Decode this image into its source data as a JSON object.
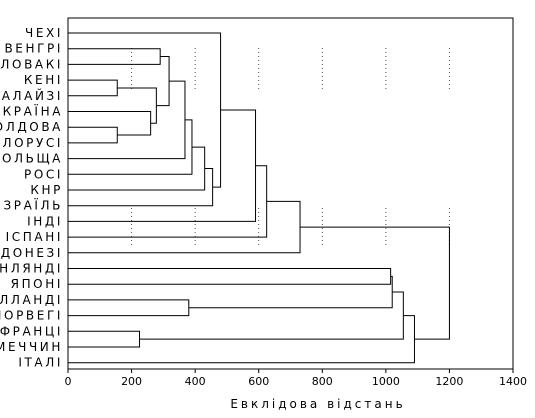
{
  "chart_data": {
    "type": "dendrogram",
    "xlabel": "Евклідова відстань",
    "xlim": [
      0,
      1400
    ],
    "x_ticks": [
      0,
      200,
      400,
      600,
      800,
      1000,
      1200,
      1400
    ],
    "leaves": [
      "ЧЕХІ",
      "ВЕНГРІ",
      "СЛОВАКІ",
      "КЕНІ",
      "МАЛАЙЗІ",
      "УКРАЇНА",
      "МОЛДОВА",
      "БІЛОРУСІ",
      "ПОЛЬЩА",
      "РОСІ",
      "КНР",
      "ІЗРАЇЛЬ",
      "ІНДІ",
      "ІСПАНІ",
      "ІНДОНЕЗІ",
      "ФІНЛЯНДІ",
      "ЯПОНІ",
      "ГОЛЛАНДІ",
      "НОРВЕГІ",
      "ФРАНЦІ",
      "НІМЕЧЧИН",
      "ІТАЛІ"
    ],
    "merges": [
      {
        "a": "КЕНІ",
        "b": "МАЛАЙЗІ",
        "height": 155
      },
      {
        "a": "МОЛДОВА",
        "b": "БІЛОРУСІ",
        "height": 155
      },
      {
        "a": "НІМЕЧЧИН",
        "b": "ФРАНЦІ",
        "height": 225
      },
      {
        "a": "УКРАЇНА",
        "b": "C2",
        "height": 260
      },
      {
        "a": "C1",
        "b": "C4",
        "height": 278
      },
      {
        "a": "ВЕНГРІ",
        "b": "СЛОВАКІ",
        "height": 290
      },
      {
        "a": "C6",
        "b": "C5",
        "height": 318
      },
      {
        "a": "ПОЛЬЩА",
        "b": "C7",
        "height": 368
      },
      {
        "a": "ГОЛЛАНДІ",
        "b": "НОРВЕГІ",
        "height": 380
      },
      {
        "a": "C8",
        "b": "РОСІ",
        "height": 390
      },
      {
        "a": "КНР",
        "b": "C10",
        "height": 430
      },
      {
        "a": "ІЗРАЇЛЬ",
        "b": "C11",
        "height": 455
      },
      {
        "a": "ЧЕХІ",
        "b": "C12",
        "height": 480
      },
      {
        "a": "C13",
        "b": "ІНДІ",
        "height": 590
      },
      {
        "a": "C14",
        "b": "ІСПАНІ",
        "height": 625
      },
      {
        "a": "C15",
        "b": "ІНДОНЕЗІ",
        "height": 730
      },
      {
        "a": "ФІНЛЯНДІ",
        "b": "ЯПОНІ",
        "height": 1015
      },
      {
        "a": "C17",
        "b": "C9",
        "height": 1020
      },
      {
        "a": "C18",
        "b": "C3",
        "height": 1055
      },
      {
        "a": "C19",
        "b": "ІТАЛІ",
        "height": 1090
      },
      {
        "a": "C16",
        "b": "C20",
        "height": 1200
      }
    ],
    "grid": "dotted"
  }
}
